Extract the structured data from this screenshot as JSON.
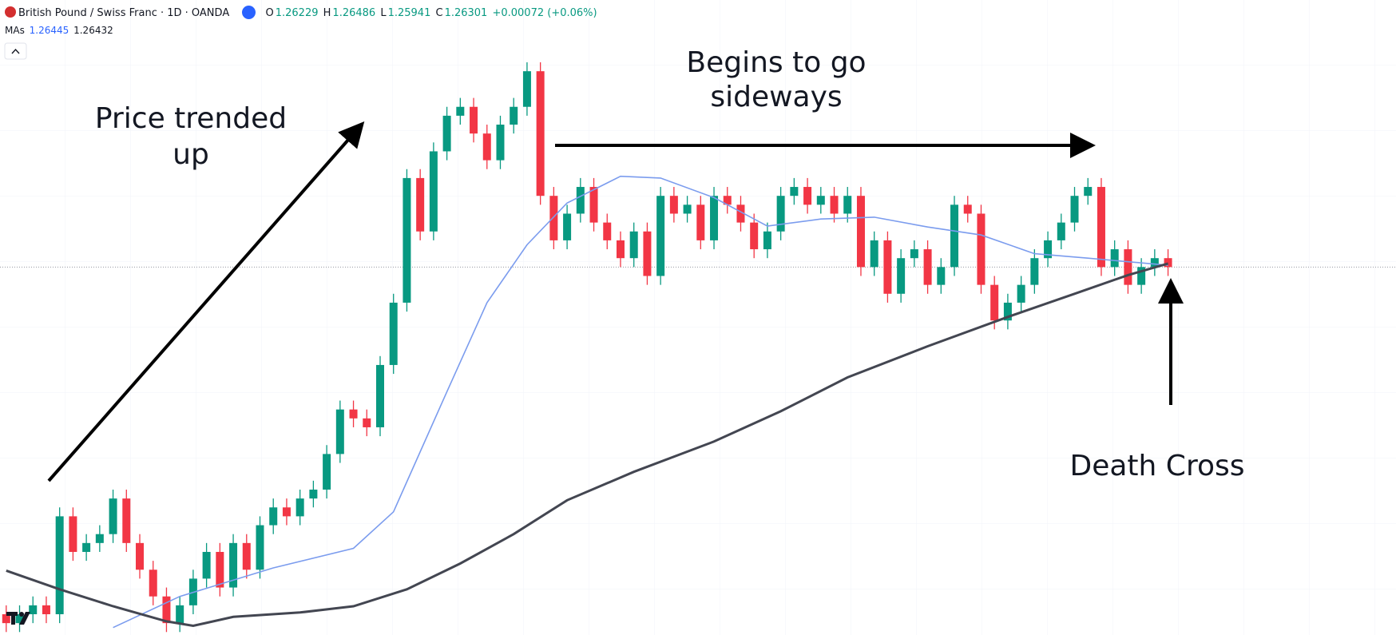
{
  "header": {
    "symbol": "British Pound / Swiss Franc · 1D · OANDA",
    "ohlc": [
      {
        "label": "O",
        "value": "1.26229"
      },
      {
        "label": "H",
        "value": "1.26486"
      },
      {
        "label": "L",
        "value": "1.25941"
      },
      {
        "label": "C",
        "value": "1.26301"
      }
    ],
    "change": "+0.00072 (+0.06%)",
    "ma_label": "MAs",
    "ma_values": [
      "1.26445",
      "1.26432"
    ]
  },
  "chart_data": {
    "type": "candlestick",
    "open": [
      1.146,
      1.143,
      1.146,
      1.149,
      1.146,
      1.179,
      1.167,
      1.17,
      1.173,
      1.185,
      1.17,
      1.161,
      1.152,
      1.143,
      1.149,
      1.158,
      1.167,
      1.155,
      1.17,
      1.161,
      1.176,
      1.182,
      1.179,
      1.185,
      1.188,
      1.2,
      1.215,
      1.212,
      1.209,
      1.23,
      1.251,
      1.293,
      1.275,
      1.302,
      1.314,
      1.317,
      1.308,
      1.299,
      1.311,
      1.317,
      1.329,
      1.287,
      1.272,
      1.281,
      1.29,
      1.278,
      1.272,
      1.266,
      1.275,
      1.26,
      1.287,
      1.281,
      1.284,
      1.272,
      1.287,
      1.284,
      1.278,
      1.269,
      1.275,
      1.287,
      1.29,
      1.284,
      1.287,
      1.281,
      1.287,
      1.263,
      1.272,
      1.254,
      1.266,
      1.269,
      1.257,
      1.263,
      1.284,
      1.281,
      1.257,
      1.245,
      1.251,
      1.257,
      1.266,
      1.272,
      1.278,
      1.287,
      1.29,
      1.263,
      1.269,
      1.257,
      1.263,
      1.266
    ],
    "high": [
      1.149,
      1.149,
      1.152,
      1.152,
      1.182,
      1.182,
      1.173,
      1.176,
      1.188,
      1.188,
      1.173,
      1.164,
      1.155,
      1.152,
      1.161,
      1.17,
      1.17,
      1.173,
      1.173,
      1.179,
      1.185,
      1.185,
      1.188,
      1.191,
      1.203,
      1.218,
      1.218,
      1.215,
      1.233,
      1.254,
      1.296,
      1.296,
      1.305,
      1.317,
      1.32,
      1.32,
      1.311,
      1.314,
      1.32,
      1.332,
      1.332,
      1.29,
      1.284,
      1.293,
      1.293,
      1.281,
      1.275,
      1.278,
      1.278,
      1.29,
      1.29,
      1.287,
      1.287,
      1.29,
      1.29,
      1.287,
      1.281,
      1.278,
      1.29,
      1.293,
      1.293,
      1.29,
      1.29,
      1.29,
      1.29,
      1.275,
      1.275,
      1.269,
      1.272,
      1.272,
      1.266,
      1.287,
      1.287,
      1.284,
      1.26,
      1.254,
      1.26,
      1.269,
      1.275,
      1.281,
      1.29,
      1.293,
      1.293,
      1.272,
      1.272,
      1.266,
      1.269,
      1.269
    ],
    "low": [
      1.14,
      1.14,
      1.143,
      1.143,
      1.143,
      1.164,
      1.164,
      1.167,
      1.17,
      1.167,
      1.158,
      1.149,
      1.14,
      1.14,
      1.146,
      1.155,
      1.152,
      1.152,
      1.158,
      1.158,
      1.173,
      1.176,
      1.176,
      1.182,
      1.185,
      1.197,
      1.209,
      1.206,
      1.206,
      1.227,
      1.248,
      1.272,
      1.272,
      1.299,
      1.311,
      1.305,
      1.296,
      1.296,
      1.308,
      1.314,
      1.284,
      1.269,
      1.269,
      1.278,
      1.275,
      1.269,
      1.263,
      1.263,
      1.257,
      1.257,
      1.278,
      1.278,
      1.269,
      1.269,
      1.281,
      1.275,
      1.266,
      1.266,
      1.272,
      1.284,
      1.281,
      1.281,
      1.278,
      1.278,
      1.26,
      1.26,
      1.251,
      1.251,
      1.263,
      1.254,
      1.254,
      1.26,
      1.278,
      1.254,
      1.242,
      1.242,
      1.248,
      1.254,
      1.263,
      1.269,
      1.275,
      1.284,
      1.26,
      1.26,
      1.254,
      1.254,
      1.26,
      1.26
    ],
    "close": [
      1.143,
      1.146,
      1.149,
      1.146,
      1.179,
      1.167,
      1.17,
      1.173,
      1.185,
      1.17,
      1.161,
      1.152,
      1.143,
      1.149,
      1.158,
      1.167,
      1.155,
      1.17,
      1.161,
      1.176,
      1.182,
      1.179,
      1.185,
      1.188,
      1.2,
      1.215,
      1.212,
      1.209,
      1.23,
      1.251,
      1.293,
      1.275,
      1.302,
      1.314,
      1.317,
      1.308,
      1.299,
      1.311,
      1.317,
      1.329,
      1.287,
      1.272,
      1.281,
      1.29,
      1.278,
      1.272,
      1.266,
      1.275,
      1.26,
      1.287,
      1.281,
      1.284,
      1.272,
      1.287,
      1.284,
      1.278,
      1.269,
      1.275,
      1.287,
      1.29,
      1.284,
      1.287,
      1.281,
      1.287,
      1.263,
      1.272,
      1.254,
      1.266,
      1.269,
      1.257,
      1.263,
      1.284,
      1.281,
      1.257,
      1.245,
      1.251,
      1.257,
      1.266,
      1.272,
      1.278,
      1.287,
      1.29,
      1.263,
      1.269,
      1.257,
      1.263,
      1.266,
      1.263
    ],
    "up_color": "#089981",
    "down_color": "#f23645",
    "ylim": [
      1.139,
      1.353
    ],
    "xlim": [
      -0.466,
      104.07
    ],
    "series": [
      {
        "color": "#7b9cee",
        "x": [
          8,
          13,
          20,
          26,
          29,
          33,
          36,
          39,
          42,
          46,
          49,
          53,
          57,
          61,
          65,
          69,
          73,
          77,
          81,
          87
        ],
        "values": [
          1.1415,
          1.152,
          1.1616,
          1.1682,
          1.1805,
          1.221,
          1.251,
          1.2705,
          1.2846,
          1.2936,
          1.293,
          1.2864,
          1.2768,
          1.2792,
          1.2798,
          1.2765,
          1.2738,
          1.2675,
          1.266,
          1.2636
        ]
      },
      {
        "color": "#434651",
        "x": [
          0,
          4,
          8,
          12,
          14,
          17,
          22,
          26,
          30,
          34,
          38,
          42,
          47,
          53,
          58,
          63,
          69,
          75,
          80,
          84,
          87
        ],
        "values": [
          1.1607,
          1.1544,
          1.1487,
          1.1436,
          1.1421,
          1.1451,
          1.1466,
          1.1487,
          1.1544,
          1.1631,
          1.173,
          1.1844,
          1.194,
          1.2042,
          1.2144,
          1.2258,
          1.2363,
          1.2462,
          1.254,
          1.2603,
          1.2642
        ]
      }
    ],
    "annotations": [
      {
        "lines": [
          "Price trended",
          "up"
        ]
      },
      {
        "lines": [
          "Begins to go",
          "sideways"
        ]
      },
      {
        "lines": [
          "Death Cross"
        ]
      }
    ]
  }
}
